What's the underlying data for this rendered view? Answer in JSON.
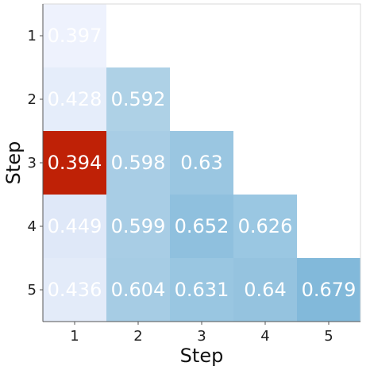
{
  "chart_data": {
    "type": "heatmap",
    "xlabel": "Step",
    "ylabel": "Step",
    "x_categories": [
      "1",
      "2",
      "3",
      "4",
      "5"
    ],
    "y_categories": [
      "1",
      "2",
      "3",
      "4",
      "5"
    ],
    "cells": [
      {
        "row": "1",
        "col": "1",
        "value": 0.397,
        "label": "0.397",
        "color": "#eef2fd"
      },
      {
        "row": "2",
        "col": "1",
        "value": 0.428,
        "label": "0.428",
        "color": "#e5edfa"
      },
      {
        "row": "2",
        "col": "2",
        "value": 0.592,
        "label": "0.592",
        "color": "#aed1e6"
      },
      {
        "row": "3",
        "col": "1",
        "value": 0.394,
        "label": "0.394",
        "color": "#bf2106"
      },
      {
        "row": "3",
        "col": "2",
        "value": 0.598,
        "label": "0.598",
        "color": "#a8cde5"
      },
      {
        "row": "3",
        "col": "3",
        "value": 0.63,
        "label": "0.63",
        "color": "#9ac6e1"
      },
      {
        "row": "4",
        "col": "1",
        "value": 0.449,
        "label": "0.449",
        "color": "#dfe8f8"
      },
      {
        "row": "4",
        "col": "2",
        "value": 0.599,
        "label": "0.599",
        "color": "#a8cde5"
      },
      {
        "row": "4",
        "col": "3",
        "value": 0.652,
        "label": "0.652",
        "color": "#8fc0de"
      },
      {
        "row": "4",
        "col": "4",
        "value": 0.626,
        "label": "0.626",
        "color": "#9ac7e2"
      },
      {
        "row": "5",
        "col": "1",
        "value": 0.436,
        "label": "0.436",
        "color": "#e3ebf9"
      },
      {
        "row": "5",
        "col": "2",
        "value": 0.604,
        "label": "0.604",
        "color": "#a6cce4"
      },
      {
        "row": "5",
        "col": "3",
        "value": 0.631,
        "label": "0.631",
        "color": "#99c6e1"
      },
      {
        "row": "5",
        "col": "4",
        "value": 0.64,
        "label": "0.64",
        "color": "#95c3df"
      },
      {
        "row": "5",
        "col": "5",
        "value": 0.679,
        "label": "0.679",
        "color": "#82b9da"
      }
    ],
    "grid": false
  }
}
